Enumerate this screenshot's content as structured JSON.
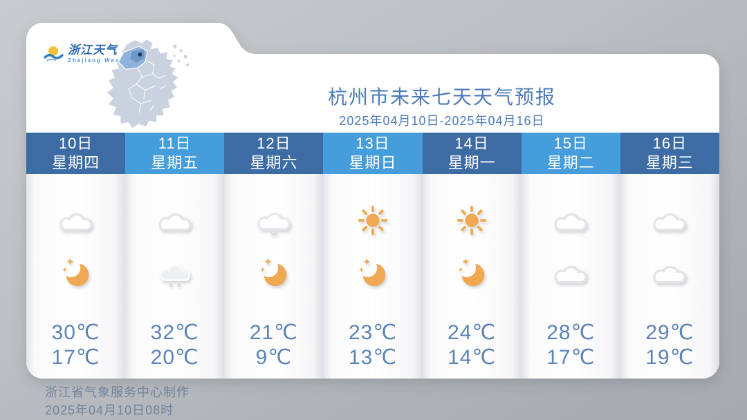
{
  "logo": {
    "title": "浙江天气",
    "subtitle": "Zhejiang  Weather"
  },
  "header": {
    "title": "杭州市未来七天天气预报",
    "date_range": "2025年04月10日-2025年04月16日",
    "city": "杭州市"
  },
  "forecast": {
    "days": [
      {
        "date": "10日",
        "weekday": "星期四",
        "header_style": "dark",
        "day_icon": "cloudy",
        "night_icon": "moon-stars",
        "high": "30℃",
        "low": "17℃"
      },
      {
        "date": "11日",
        "weekday": "星期五",
        "header_style": "light",
        "day_icon": "cloudy",
        "night_icon": "cloud-drizzle",
        "high": "32℃",
        "low": "20℃"
      },
      {
        "date": "12日",
        "weekday": "星期六",
        "header_style": "dark",
        "day_icon": "cloud-shower",
        "night_icon": "moon-stars",
        "high": "21℃",
        "low": "9℃"
      },
      {
        "date": "13日",
        "weekday": "星期日",
        "header_style": "light",
        "day_icon": "sunny",
        "night_icon": "moon-stars",
        "high": "23℃",
        "low": "13℃"
      },
      {
        "date": "14日",
        "weekday": "星期一",
        "header_style": "dark",
        "day_icon": "sunny",
        "night_icon": "moon-stars",
        "high": "24℃",
        "low": "14℃"
      },
      {
        "date": "15日",
        "weekday": "星期二",
        "header_style": "light",
        "day_icon": "cloudy",
        "night_icon": "cloudy",
        "high": "28℃",
        "low": "17℃"
      },
      {
        "date": "16日",
        "weekday": "星期三",
        "header_style": "dark",
        "day_icon": "cloudy",
        "night_icon": "cloudy",
        "high": "29℃",
        "low": "19℃"
      }
    ]
  },
  "footer": {
    "line1": "浙江省气象服务中心制作",
    "line2": "2025年04月10日08时"
  },
  "colors": {
    "header_dark": "#3d6ca5",
    "header_light": "#459ddb",
    "temp_text": "#5b83b7",
    "title_blue": "#4b7ab8",
    "icon_orange": "#f0a852",
    "map_base": "#c9d2de",
    "map_highlight": "#8fb3dd"
  }
}
